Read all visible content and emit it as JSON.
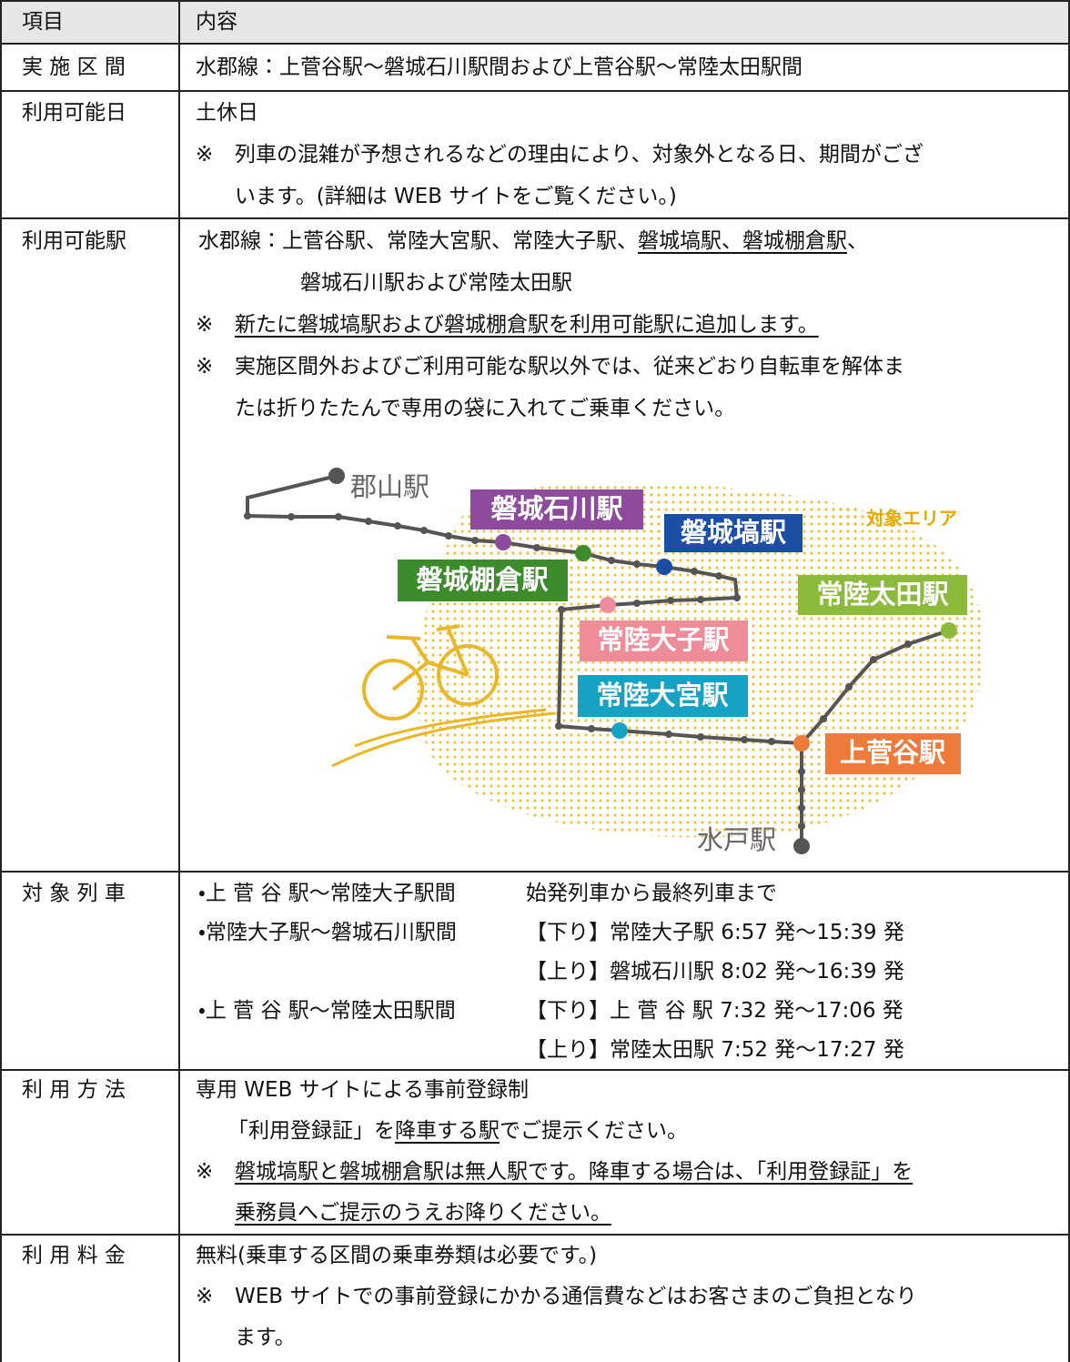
{
  "table": {
    "header": [
      "項目",
      "内容"
    ],
    "rows": [
      {
        "label": "実 施 区 間",
        "lines": [
          [
            "水郡線：上菅谷駅～磐城石川駅間および上菅谷駅～常陸太田駅間"
          ]
        ]
      },
      {
        "label": "利用可能日",
        "lines": [
          [
            "土休日"
          ],
          [
            "※",
            "列車の混雑が予想されるなどの理由により、対象外となる日、期間がござ"
          ],
          [
            "います。(詳細は WEB サイトをご覧ください。)"
          ]
        ]
      },
      {
        "label": "利用可能駅",
        "lines": [
          [
            "水郡線：上菅谷駅、常陸大宮駅、常陸大子駅、",
            "磐城塙駅、磐城棚倉駅",
            "、"
          ],
          [
            "磐城石川駅および常陸太田駅"
          ],
          [
            "※",
            "新たに磐城塙駅および磐城棚倉駅を利用可能駅に追加します。"
          ],
          [
            "※",
            "実施区間外およびご利用可能な駅以外では、従来どおり自転車を解体ま"
          ],
          [
            "たは折りたたんで専用の袋に入れてご乗車ください。"
          ]
        ]
      },
      {
        "label": "対 象 列 車",
        "lines": [
          [
            "・上 菅 谷 駅～常陸大子駅間",
            "始発列車から最終列車まで"
          ],
          [
            "・常陸大子駅～磐城石川駅間",
            "【下り】常陸大子駅 6:57 発～15:39 発"
          ],
          [
            "【上り】磐城石川駅 8:02 発～16:39 発"
          ],
          [
            "・上 菅 谷 駅～常陸太田駅間",
            "【下り】上 菅 谷 駅 7:32 発～17:06 発"
          ],
          [
            "【上り】常陸太田駅 7:52 発～17:27 発"
          ]
        ]
      },
      {
        "label": "利 用 方 法",
        "lines": [
          [
            "専用 WEB サイトによる事前登録制"
          ],
          [
            "「利用登録証」を",
            "降車する駅",
            "でご提示ください。"
          ],
          [
            "※",
            "磐城塙駅と磐城棚倉駅は無人駅です。降車する場合は、「利用登録証」を"
          ],
          [
            "乗務員へご提示のうえお降りください。"
          ]
        ]
      },
      {
        "label": "利 用 料 金",
        "lines": [
          [
            "無料(乗車する区間の乗車券類は必要です。)"
          ],
          [
            "※",
            "WEB サイトでの事前登録にかかる通信費などはお客さまのご負担となり"
          ],
          [
            "ます。"
          ]
        ]
      }
    ]
  },
  "map": {
    "stations": [
      "郡山駅",
      "磐城石川駅",
      "磐城塙駅",
      "磐城棚倉駅",
      "常陸太田駅",
      "常陸大子駅",
      "常陸大宮駅",
      "上菅谷駅",
      "水戸駅"
    ],
    "legend": "対象エリア"
  }
}
